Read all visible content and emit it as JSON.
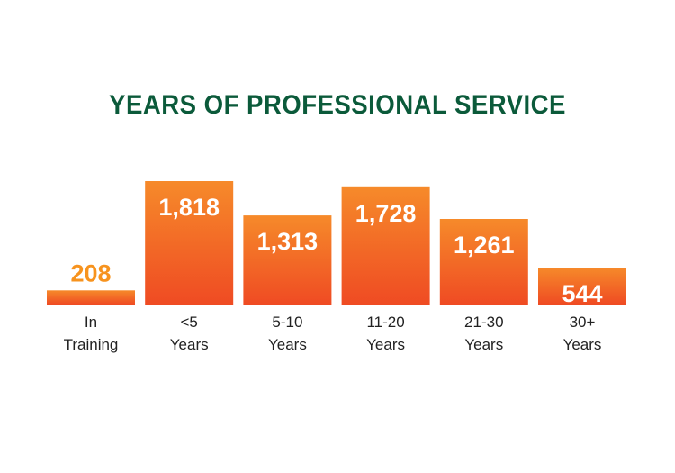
{
  "colors": {
    "title": "#0b5a3a",
    "bar_top": "#f68a2a",
    "bar_bottom": "#ef4b23",
    "value_inside": "#ffffff",
    "value_outside": "#f7931e",
    "category_text": "#222222"
  },
  "chart_data": {
    "type": "bar",
    "title": "YEARS OF PROFESSIONAL SERVICE",
    "categories": [
      [
        "In",
        "Training"
      ],
      [
        "<5",
        "Years"
      ],
      [
        "5-10",
        "Years"
      ],
      [
        "11-20",
        "Years"
      ],
      [
        "21-30",
        "Years"
      ],
      [
        "30+",
        "Years"
      ]
    ],
    "values": [
      208,
      1818,
      1313,
      1728,
      1261,
      544
    ],
    "value_labels": [
      "208",
      "1,818",
      "1,313",
      "1,728",
      "1,261",
      "544"
    ],
    "ylim": [
      0,
      1818
    ],
    "grid": false,
    "legend": "none",
    "xlabel": "",
    "ylabel": ""
  }
}
